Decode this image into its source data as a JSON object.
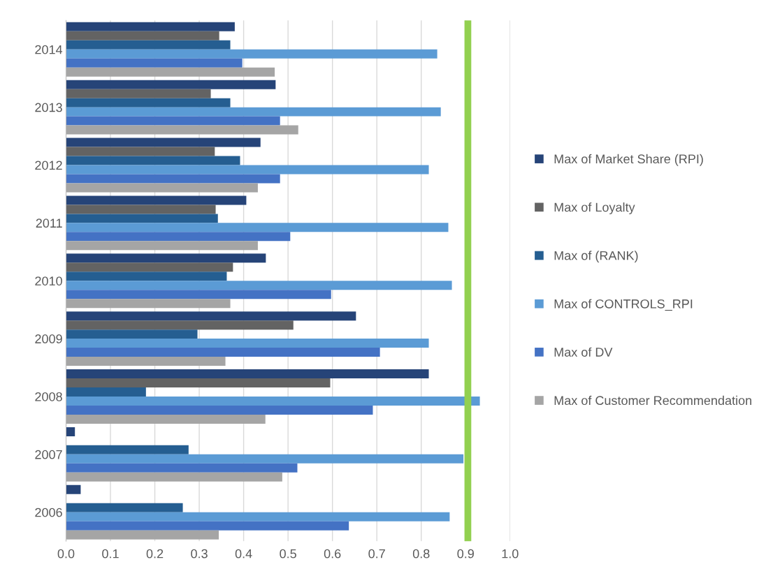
{
  "chart_data": {
    "type": "bar",
    "orientation": "horizontal",
    "categories": [
      "2014",
      "2013",
      "2012",
      "2011",
      "2010",
      "2009",
      "2008",
      "2007",
      "2006"
    ],
    "series": [
      {
        "name": "Max of Market Share (RPI)",
        "color": "#264478",
        "values": [
          0.38,
          0.472,
          0.438,
          0.406,
          0.45,
          0.653,
          0.817,
          0.02,
          0.033
        ]
      },
      {
        "name": "Max of Loyalty",
        "color": "#636363",
        "values": [
          0.345,
          0.326,
          0.335,
          0.337,
          0.376,
          0.512,
          0.595,
          null,
          null
        ]
      },
      {
        "name": "Max of (RANK)",
        "color": "#255e91",
        "values": [
          0.37,
          0.37,
          0.392,
          0.342,
          0.362,
          0.296,
          0.18,
          0.276,
          0.263
        ]
      },
      {
        "name": "Max of CONTROLS_RPI",
        "color": "#5b9bd5",
        "values": [
          0.836,
          0.844,
          0.817,
          0.861,
          0.869,
          0.817,
          0.932,
          0.895,
          0.864
        ]
      },
      {
        "name": "Max of DV",
        "color": "#4472c4",
        "values": [
          0.397,
          0.482,
          0.482,
          0.505,
          0.597,
          0.707,
          0.691,
          0.521,
          0.637
        ]
      },
      {
        "name": "Max of Customer Recommendation",
        "color": "#a5a5a5",
        "values": [
          0.47,
          0.523,
          0.432,
          0.432,
          0.37,
          0.359,
          0.449,
          0.487,
          0.344
        ]
      }
    ],
    "xlim": [
      0,
      1.0
    ],
    "xticks": [
      {
        "value": 0,
        "label": "0.0"
      },
      {
        "value": 0.1,
        "label": "0.1"
      },
      {
        "value": 0.2,
        "label": "0.2"
      },
      {
        "value": 0.3,
        "label": "0.3"
      },
      {
        "value": 0.4,
        "label": "0.4"
      },
      {
        "value": 0.5,
        "label": "0.5"
      },
      {
        "value": 0.6,
        "label": "0.6"
      },
      {
        "value": 0.7,
        "label": "0.7"
      },
      {
        "value": 0.8,
        "label": "0.8"
      },
      {
        "value": 0.9,
        "label": "0.9"
      },
      {
        "value": 1.0,
        "label": "1.0"
      }
    ],
    "ref_lines": [
      {
        "axis": "x",
        "value": 0.905,
        "color": "#92d050"
      }
    ],
    "grid": "x",
    "legend": "right"
  }
}
